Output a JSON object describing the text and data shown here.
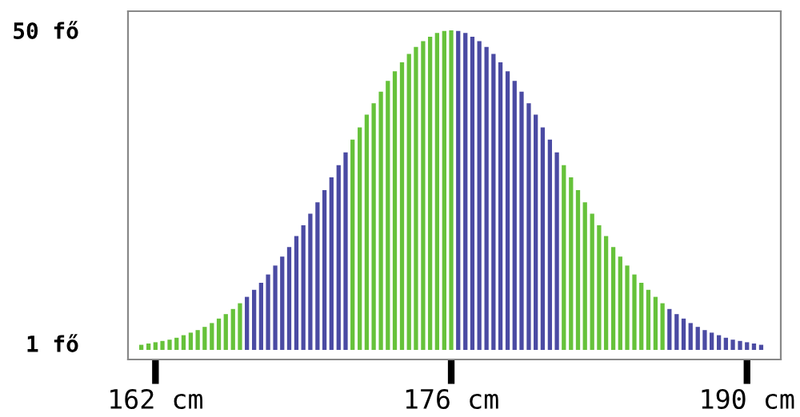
{
  "chart_data": {
    "type": "bar",
    "x": [
      161.33,
      161.67,
      162,
      162.33,
      162.67,
      163,
      163.33,
      163.67,
      164,
      164.33,
      164.67,
      165,
      165.33,
      165.67,
      166,
      166.33,
      166.67,
      167,
      167.33,
      167.67,
      168,
      168.33,
      168.67,
      169,
      169.33,
      169.67,
      170,
      170.33,
      170.67,
      171,
      171.33,
      171.67,
      172,
      172.33,
      172.67,
      173,
      173.33,
      173.67,
      174,
      174.33,
      174.67,
      175,
      175.33,
      175.67,
      176,
      176.33,
      176.67,
      177,
      177.33,
      177.67,
      178,
      178.33,
      178.67,
      179,
      179.33,
      179.67,
      180,
      180.33,
      180.67,
      181,
      181.33,
      181.67,
      182,
      182.33,
      182.67,
      183,
      183.33,
      183.67,
      184,
      184.33,
      184.67,
      185,
      185.33,
      185.67,
      186,
      186.33,
      186.67,
      187,
      187.33,
      187.67,
      188,
      188.33,
      188.67,
      189,
      189.33,
      189.67,
      190,
      190.33,
      190.67
    ],
    "values": [
      0.8,
      1.0,
      1.2,
      1.4,
      1.6,
      1.9,
      2.3,
      2.7,
      3.1,
      3.6,
      4.2,
      4.9,
      5.6,
      6.4,
      7.3,
      8.3,
      9.4,
      10.5,
      11.8,
      13.2,
      14.6,
      16.1,
      17.8,
      19.5,
      21.3,
      23.1,
      25.0,
      27.0,
      28.9,
      30.9,
      32.9,
      34.8,
      36.8,
      38.6,
      40.4,
      42.1,
      43.6,
      45.0,
      46.3,
      47.4,
      48.3,
      49.0,
      49.6,
      49.9,
      50.0,
      49.9,
      49.6,
      49.0,
      48.3,
      47.4,
      46.3,
      45.0,
      43.6,
      42.1,
      40.4,
      38.6,
      36.8,
      34.8,
      32.9,
      30.9,
      28.9,
      27.0,
      25.0,
      23.1,
      21.3,
      19.5,
      17.8,
      16.1,
      14.6,
      13.2,
      11.8,
      10.5,
      9.4,
      8.3,
      7.3,
      6.4,
      5.6,
      4.9,
      4.2,
      3.6,
      3.1,
      2.7,
      2.3,
      1.9,
      1.6,
      1.4,
      1.2,
      1.0,
      0.8
    ],
    "colors": [
      "#66c23a",
      "#66c23a",
      "#66c23a",
      "#66c23a",
      "#66c23a",
      "#66c23a",
      "#66c23a",
      "#66c23a",
      "#66c23a",
      "#66c23a",
      "#66c23a",
      "#66c23a",
      "#66c23a",
      "#66c23a",
      "#66c23a",
      "#4b4ba3",
      "#4b4ba3",
      "#4b4ba3",
      "#4b4ba3",
      "#4b4ba3",
      "#4b4ba3",
      "#4b4ba3",
      "#4b4ba3",
      "#4b4ba3",
      "#4b4ba3",
      "#4b4ba3",
      "#4b4ba3",
      "#4b4ba3",
      "#4b4ba3",
      "#4b4ba3",
      "#66c23a",
      "#66c23a",
      "#66c23a",
      "#66c23a",
      "#66c23a",
      "#66c23a",
      "#66c23a",
      "#66c23a",
      "#66c23a",
      "#66c23a",
      "#66c23a",
      "#66c23a",
      "#66c23a",
      "#66c23a",
      "#66c23a",
      "#4b4ba3",
      "#4b4ba3",
      "#4b4ba3",
      "#4b4ba3",
      "#4b4ba3",
      "#4b4ba3",
      "#4b4ba3",
      "#4b4ba3",
      "#4b4ba3",
      "#4b4ba3",
      "#4b4ba3",
      "#4b4ba3",
      "#4b4ba3",
      "#4b4ba3",
      "#4b4ba3",
      "#66c23a",
      "#66c23a",
      "#66c23a",
      "#66c23a",
      "#66c23a",
      "#66c23a",
      "#66c23a",
      "#66c23a",
      "#66c23a",
      "#66c23a",
      "#66c23a",
      "#66c23a",
      "#66c23a",
      "#66c23a",
      "#66c23a",
      "#4b4ba3",
      "#4b4ba3",
      "#4b4ba3",
      "#4b4ba3",
      "#4b4ba3",
      "#4b4ba3",
      "#4b4ba3",
      "#4b4ba3",
      "#4b4ba3",
      "#4b4ba3",
      "#4b4ba3",
      "#4b4ba3",
      "#4b4ba3",
      "#4b4ba3"
    ],
    "xlim": [
      160.7,
      191.6
    ],
    "ylim": [
      -1.5,
      53
    ],
    "xticks": [
      {
        "value": 162,
        "label": "162 cm"
      },
      {
        "value": 176,
        "label": "176 cm"
      },
      {
        "value": 190,
        "label": "190 cm"
      }
    ],
    "yticks": [
      {
        "value": 1,
        "label": "1 fő"
      },
      {
        "value": 50,
        "label": "50 fő"
      }
    ],
    "grid": false,
    "legend": false
  }
}
